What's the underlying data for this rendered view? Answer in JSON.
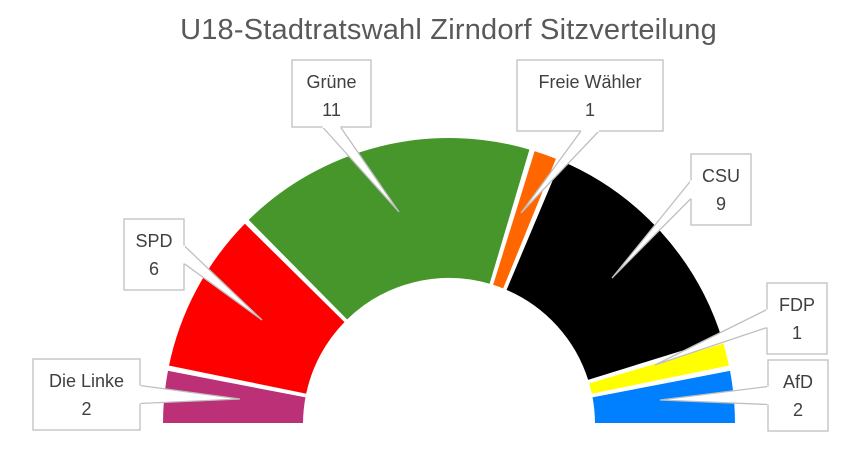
{
  "chart_data": {
    "type": "pie",
    "variant": "semicircle-parliament",
    "title": "U18-Stadtratswahl Zirndorf Sitzverteilung",
    "total_seats": 32,
    "slices": [
      {
        "name": "Die Linke",
        "value": 2,
        "value_label": "2",
        "color": "#BB3076"
      },
      {
        "name": "SPD",
        "value": 6,
        "value_label": "6",
        "color": "#FF0000"
      },
      {
        "name": "Grüne",
        "value": 11,
        "value_label": "11",
        "color": "#46962B"
      },
      {
        "name": "Freie Wähler",
        "value": 1,
        "value_label": "1",
        "color": "#FF6600"
      },
      {
        "name": "CSU",
        "value": 9,
        "value_label": "9",
        "color": "#000000"
      },
      {
        "name": "FDP",
        "value": 1,
        "value_label": "1",
        "color": "#FFFF00"
      },
      {
        "name": "AfD",
        "value": 2,
        "value_label": "2",
        "color": "#0080FF"
      }
    ],
    "legend": "none",
    "data_labels": "callouts"
  }
}
